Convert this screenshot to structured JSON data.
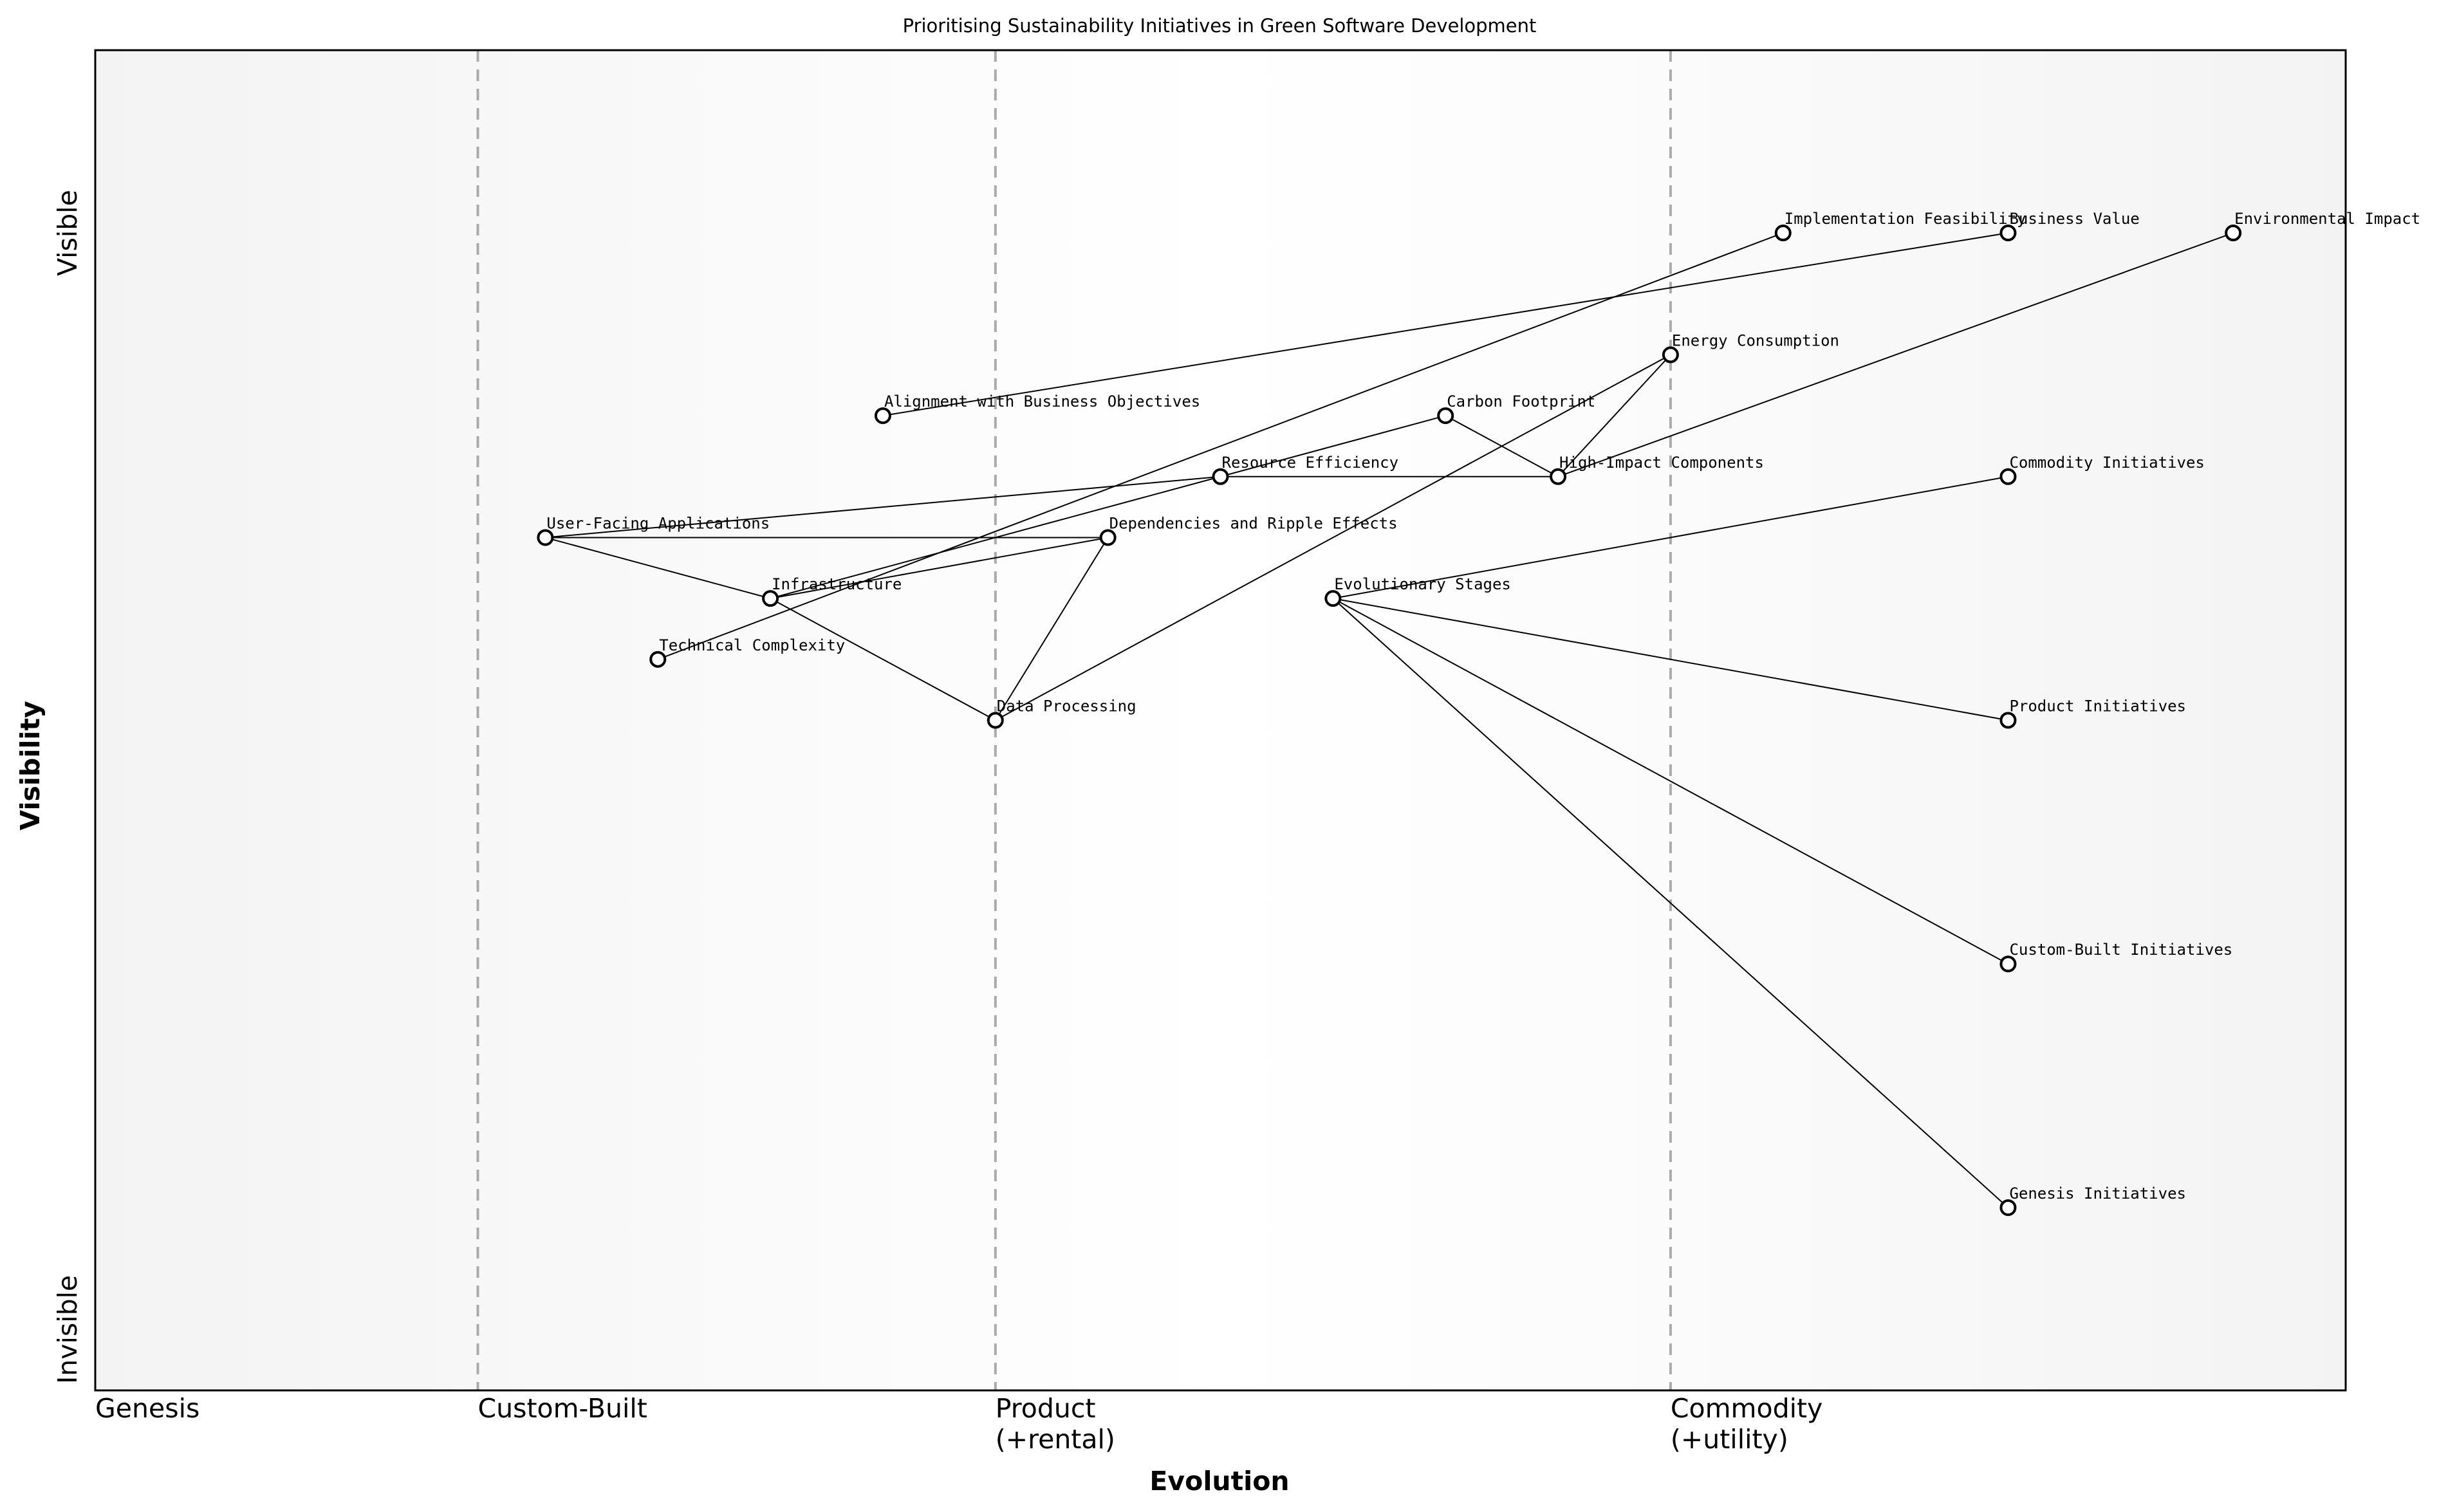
{
  "chart_data": {
    "type": "wardley",
    "title": "Prioritising Sustainability Initiatives in Green Software Development",
    "x_label": "Evolution",
    "y_label": "Visibility",
    "xlim": [
      0,
      1
    ],
    "ylim": [
      0,
      1.1
    ],
    "xticks": [
      {
        "value": 0,
        "label": "Genesis"
      },
      {
        "value": 0.17,
        "label": "Custom-Built"
      },
      {
        "value": 0.4,
        "label": "Product\n(+rental)"
      },
      {
        "value": 0.7,
        "label": "Commodity\n(+utility)"
      }
    ],
    "yticks": [
      {
        "value": 0.05,
        "label": "Invisible"
      },
      {
        "value": 0.95,
        "label": "Visible"
      }
    ],
    "nodes": [
      {
        "name": "Implementation Feasibility",
        "x": 0.75,
        "y": 0.95
      },
      {
        "name": "Business Value",
        "x": 0.85,
        "y": 0.95
      },
      {
        "name": "Environmental Impact",
        "x": 0.95,
        "y": 0.95
      },
      {
        "name": "Energy Consumption",
        "x": 0.7,
        "y": 0.85
      },
      {
        "name": "Alignment with Business Objectives",
        "x": 0.35,
        "y": 0.8
      },
      {
        "name": "Carbon Footprint",
        "x": 0.6,
        "y": 0.8
      },
      {
        "name": "Resource Efficiency",
        "x": 0.5,
        "y": 0.75
      },
      {
        "name": "High-Impact Components",
        "x": 0.65,
        "y": 0.75
      },
      {
        "name": "Commodity Initiatives",
        "x": 0.85,
        "y": 0.75
      },
      {
        "name": "User-Facing Applications",
        "x": 0.2,
        "y": 0.7
      },
      {
        "name": "Dependencies and Ripple Effects",
        "x": 0.45,
        "y": 0.7
      },
      {
        "name": "Infrastructure",
        "x": 0.3,
        "y": 0.65
      },
      {
        "name": "Evolutionary Stages",
        "x": 0.55,
        "y": 0.65
      },
      {
        "name": "Technical Complexity",
        "x": 0.25,
        "y": 0.6
      },
      {
        "name": "Data Processing",
        "x": 0.4,
        "y": 0.55
      },
      {
        "name": "Product Initiatives",
        "x": 0.85,
        "y": 0.55
      },
      {
        "name": "Custom-Built Initiatives",
        "x": 0.85,
        "y": 0.35
      },
      {
        "name": "Genesis Initiatives",
        "x": 0.85,
        "y": 0.15
      }
    ],
    "links": [
      [
        4,
        1
      ],
      [
        0,
        13
      ],
      [
        11,
        6
      ],
      [
        9,
        6
      ],
      [
        9,
        10
      ],
      [
        9,
        11
      ],
      [
        11,
        14
      ],
      [
        11,
        10
      ],
      [
        10,
        14
      ],
      [
        14,
        3
      ],
      [
        6,
        5
      ],
      [
        6,
        7
      ],
      [
        5,
        7
      ],
      [
        7,
        3
      ],
      [
        7,
        2
      ],
      [
        12,
        8
      ],
      [
        12,
        15
      ],
      [
        12,
        16
      ],
      [
        12,
        17
      ]
    ]
  }
}
